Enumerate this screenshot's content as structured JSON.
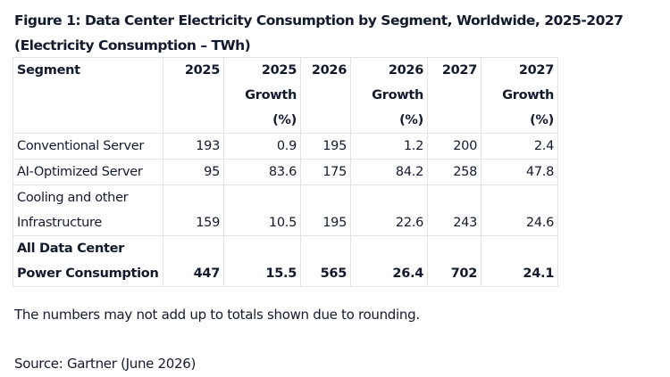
{
  "figure": {
    "title": "Figure 1: Data Center Electricity Consumption by Segment, Worldwide, 2025-2027 (Electricity Consumption – TWh)"
  },
  "table": {
    "headers": [
      "Segment",
      "2025",
      "2025 Growth (%)",
      "2026",
      "2026 Growth (%)",
      "2027",
      "2027 Growth (%)"
    ],
    "rows": [
      {
        "segment": "Conventional Server",
        "values": [
          "193",
          "0.9",
          "195",
          "1.2",
          "200",
          "2.4"
        ]
      },
      {
        "segment": "AI-Optimized Server",
        "values": [
          "95",
          "83.6",
          "175",
          "84.2",
          "258",
          "47.8"
        ]
      },
      {
        "segment": "Cooling and other Infrastructure",
        "values": [
          "159",
          "10.5",
          "195",
          "22.6",
          "243",
          "24.6"
        ]
      },
      {
        "segment": "All Data Center Power Consumption",
        "values": [
          "447",
          "15.5",
          "565",
          "26.4",
          "702",
          "24.1"
        ]
      }
    ]
  },
  "footnote": "The numbers may not add up to totals shown due to rounding.",
  "source": "Source: Gartner (June 2026)"
}
